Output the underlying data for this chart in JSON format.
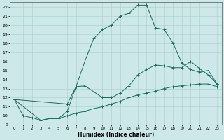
{
  "xlabel": "Humidex (Indice chaleur)",
  "bg_color": "#cce8e8",
  "grid_color": "#aacccc",
  "line_color": "#1a6b5a",
  "xlim": [
    -0.5,
    23.5
  ],
  "ylim": [
    9,
    22.5
  ],
  "yticks": [
    9,
    10,
    11,
    12,
    13,
    14,
    15,
    16,
    17,
    18,
    19,
    20,
    21,
    22
  ],
  "xticks": [
    0,
    1,
    2,
    3,
    4,
    5,
    6,
    7,
    8,
    9,
    10,
    11,
    12,
    13,
    14,
    15,
    16,
    17,
    18,
    19,
    20,
    21,
    22,
    23
  ],
  "curve1_x": [
    0,
    1,
    2,
    3,
    4,
    5,
    6,
    7,
    8,
    9,
    10,
    11,
    12,
    13,
    14,
    15,
    16,
    17,
    18,
    19,
    20,
    21,
    22,
    23
  ],
  "curve1_y": [
    11.8,
    10.0,
    9.8,
    9.5,
    9.7,
    9.7,
    10.0,
    10.3,
    10.5,
    10.8,
    11.0,
    11.3,
    11.6,
    12.0,
    12.3,
    12.5,
    12.7,
    13.0,
    13.2,
    13.3,
    13.4,
    13.5,
    13.5,
    13.2
  ],
  "curve2_x": [
    0,
    6,
    7,
    8,
    9,
    10,
    11,
    12,
    13,
    14,
    15,
    16,
    17,
    18,
    19,
    20,
    21,
    22,
    23
  ],
  "curve2_y": [
    11.8,
    11.3,
    13.2,
    16.0,
    18.5,
    19.5,
    20.0,
    21.0,
    21.3,
    22.2,
    22.2,
    19.7,
    19.5,
    18.0,
    15.8,
    15.1,
    14.8,
    15.0,
    13.5
  ],
  "curve3_x": [
    0,
    3,
    4,
    5,
    6,
    7,
    8,
    10,
    11,
    12,
    13,
    14,
    15,
    16,
    17,
    18,
    19,
    20,
    21,
    22,
    23
  ],
  "curve3_y": [
    11.8,
    9.5,
    9.7,
    9.7,
    10.5,
    13.2,
    13.3,
    12.0,
    12.0,
    12.5,
    13.3,
    14.5,
    15.1,
    15.6,
    15.5,
    15.3,
    15.3,
    16.0,
    15.2,
    14.5,
    13.5
  ]
}
